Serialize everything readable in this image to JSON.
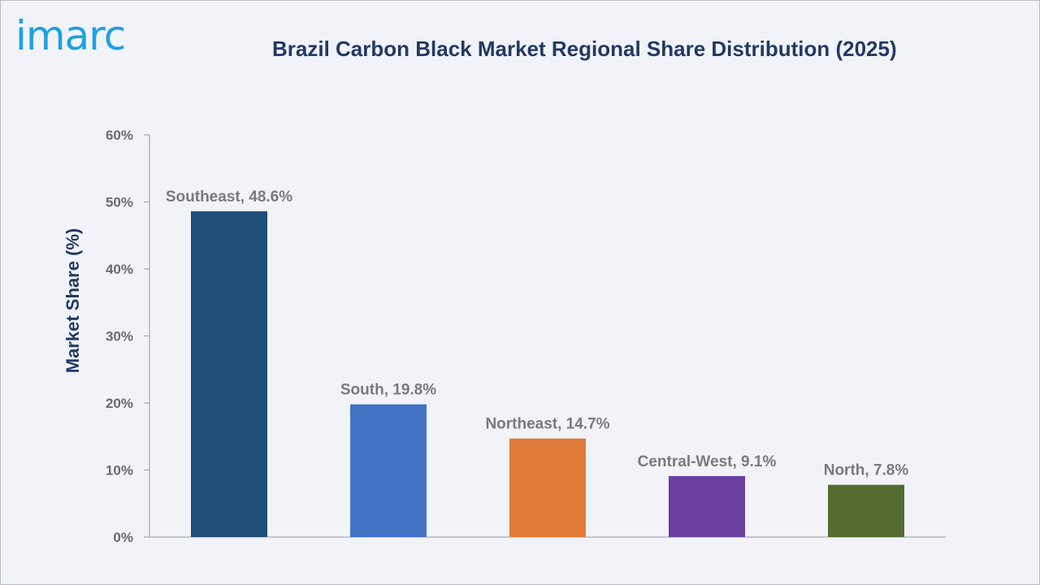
{
  "brand": {
    "logo_text": "imarc",
    "logo_color": "#1ea1e0"
  },
  "chart_data": {
    "type": "bar",
    "title": "Brazil Carbon Black Market Regional Share Distribution (2025)",
    "xlabel": "",
    "ylabel": "Market Share (%)",
    "ylim": [
      0,
      60
    ],
    "yticks": [
      "0%",
      "10%",
      "20%",
      "30%",
      "40%",
      "50%",
      "60%"
    ],
    "categories": [
      "Southeast",
      "South",
      "Northeast",
      "Central-West",
      "North"
    ],
    "values": [
      48.6,
      19.8,
      14.7,
      9.1,
      7.8
    ],
    "data_labels": [
      "Southeast, 48.6%",
      "South, 19.8%",
      "Northeast, 14.7%",
      "Central-West, 9.1%",
      "North, 7.8%"
    ],
    "colors": [
      "#1f4e79",
      "#4472c4",
      "#e07b39",
      "#6a3fa0",
      "#556b2f"
    ],
    "grid": false,
    "legend": "none"
  }
}
